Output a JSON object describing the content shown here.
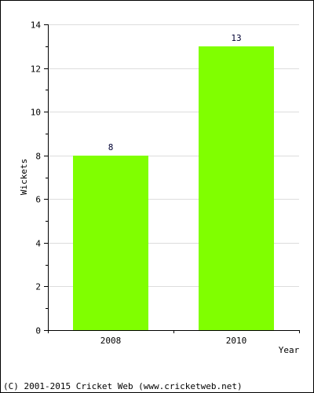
{
  "chart_data": {
    "type": "bar",
    "categories": [
      "2008",
      "2010"
    ],
    "values": [
      8,
      13
    ],
    "data_labels": [
      "8",
      "13"
    ],
    "title": "",
    "xlabel": "Year",
    "ylabel": "Wickets",
    "ylim": [
      0,
      14
    ],
    "yticks": [
      0,
      2,
      4,
      6,
      8,
      10,
      12,
      14
    ],
    "ytick_labels": [
      "0",
      "2",
      "4",
      "6",
      "8",
      "10",
      "12",
      "14"
    ],
    "grid": true,
    "bar_color": "#80ff00",
    "grid_color": "#dddddd"
  },
  "footer": {
    "copyright": "(C) 2001-2015 Cricket Web (www.cricketweb.net)"
  }
}
